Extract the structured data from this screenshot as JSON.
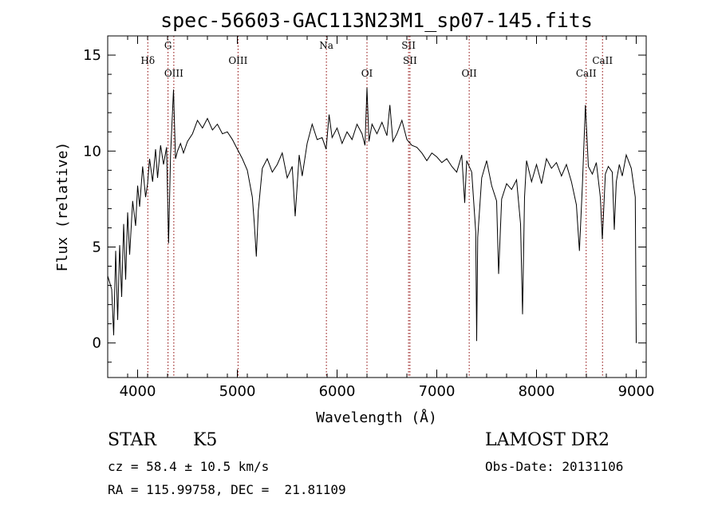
{
  "chart_data": {
    "type": "line",
    "title": "spec-56603-GAC113N23M1_sp07-145.fits",
    "xlabel": "Wavelength (Å)",
    "ylabel": "Flux (relative)",
    "xlim": [
      3700,
      9100
    ],
    "ylim": [
      -1.8,
      16
    ],
    "xticks": [
      4000,
      5000,
      6000,
      7000,
      8000,
      9000
    ],
    "yticks": [
      0,
      5,
      10,
      15
    ],
    "grid": false,
    "series": [
      {
        "points": [
          [
            3700,
            3.5
          ],
          [
            3740,
            2.8
          ],
          [
            3760,
            0.4
          ],
          [
            3780,
            4.8
          ],
          [
            3800,
            1.2
          ],
          [
            3820,
            5.1
          ],
          [
            3840,
            2.4
          ],
          [
            3860,
            6.2
          ],
          [
            3880,
            3.3
          ],
          [
            3900,
            6.8
          ],
          [
            3920,
            4.6
          ],
          [
            3950,
            7.4
          ],
          [
            3980,
            6.1
          ],
          [
            4000,
            8.2
          ],
          [
            4020,
            7.1
          ],
          [
            4050,
            9.2
          ],
          [
            4080,
            7.6
          ],
          [
            4100,
            8.3
          ],
          [
            4120,
            9.6
          ],
          [
            4150,
            8.4
          ],
          [
            4180,
            10.1
          ],
          [
            4200,
            8.6
          ],
          [
            4230,
            10.3
          ],
          [
            4260,
            9.3
          ],
          [
            4290,
            10.2
          ],
          [
            4310,
            5.2
          ],
          [
            4330,
            9.8
          ],
          [
            4360,
            13.2
          ],
          [
            4380,
            9.6
          ],
          [
            4400,
            10.0
          ],
          [
            4430,
            10.4
          ],
          [
            4460,
            9.9
          ],
          [
            4500,
            10.5
          ],
          [
            4550,
            10.9
          ],
          [
            4600,
            11.6
          ],
          [
            4650,
            11.2
          ],
          [
            4700,
            11.7
          ],
          [
            4750,
            11.1
          ],
          [
            4800,
            11.4
          ],
          [
            4850,
            10.9
          ],
          [
            4900,
            11.0
          ],
          [
            4950,
            10.6
          ],
          [
            5000,
            10.1
          ],
          [
            5050,
            9.6
          ],
          [
            5100,
            9.0
          ],
          [
            5150,
            7.6
          ],
          [
            5170,
            6.2
          ],
          [
            5190,
            4.5
          ],
          [
            5210,
            6.9
          ],
          [
            5250,
            9.1
          ],
          [
            5300,
            9.6
          ],
          [
            5350,
            8.9
          ],
          [
            5400,
            9.3
          ],
          [
            5450,
            9.9
          ],
          [
            5500,
            8.6
          ],
          [
            5550,
            9.2
          ],
          [
            5580,
            6.6
          ],
          [
            5620,
            9.8
          ],
          [
            5650,
            8.7
          ],
          [
            5700,
            10.4
          ],
          [
            5750,
            11.4
          ],
          [
            5800,
            10.6
          ],
          [
            5850,
            10.7
          ],
          [
            5890,
            10.1
          ],
          [
            5920,
            11.9
          ],
          [
            5950,
            10.7
          ],
          [
            6000,
            11.2
          ],
          [
            6050,
            10.4
          ],
          [
            6100,
            11.0
          ],
          [
            6150,
            10.6
          ],
          [
            6200,
            11.4
          ],
          [
            6250,
            10.9
          ],
          [
            6280,
            10.3
          ],
          [
            6300,
            13.3
          ],
          [
            6320,
            10.5
          ],
          [
            6350,
            11.4
          ],
          [
            6400,
            10.9
          ],
          [
            6450,
            11.5
          ],
          [
            6500,
            10.8
          ],
          [
            6530,
            12.4
          ],
          [
            6560,
            10.5
          ],
          [
            6600,
            10.9
          ],
          [
            6650,
            11.6
          ],
          [
            6700,
            10.6
          ],
          [
            6750,
            10.3
          ],
          [
            6800,
            10.2
          ],
          [
            6850,
            9.9
          ],
          [
            6900,
            9.5
          ],
          [
            6950,
            9.9
          ],
          [
            7000,
            9.7
          ],
          [
            7050,
            9.4
          ],
          [
            7100,
            9.6
          ],
          [
            7150,
            9.2
          ],
          [
            7200,
            8.9
          ],
          [
            7250,
            9.8
          ],
          [
            7280,
            7.3
          ],
          [
            7300,
            9.5
          ],
          [
            7350,
            8.9
          ],
          [
            7390,
            5.8
          ],
          [
            7400,
            0.1
          ],
          [
            7410,
            5.5
          ],
          [
            7450,
            8.6
          ],
          [
            7500,
            9.5
          ],
          [
            7550,
            8.2
          ],
          [
            7600,
            7.4
          ],
          [
            7620,
            3.6
          ],
          [
            7650,
            7.5
          ],
          [
            7700,
            8.3
          ],
          [
            7750,
            8.0
          ],
          [
            7800,
            8.5
          ],
          [
            7840,
            6.2
          ],
          [
            7860,
            1.5
          ],
          [
            7880,
            7.6
          ],
          [
            7900,
            9.5
          ],
          [
            7950,
            8.4
          ],
          [
            8000,
            9.3
          ],
          [
            8050,
            8.3
          ],
          [
            8100,
            9.6
          ],
          [
            8150,
            9.1
          ],
          [
            8200,
            9.4
          ],
          [
            8250,
            8.7
          ],
          [
            8300,
            9.3
          ],
          [
            8350,
            8.4
          ],
          [
            8400,
            7.2
          ],
          [
            8430,
            4.8
          ],
          [
            8460,
            8.2
          ],
          [
            8490,
            12.4
          ],
          [
            8520,
            9.2
          ],
          [
            8560,
            8.8
          ],
          [
            8600,
            9.4
          ],
          [
            8640,
            7.6
          ],
          [
            8660,
            5.4
          ],
          [
            8690,
            8.8
          ],
          [
            8720,
            9.2
          ],
          [
            8760,
            8.9
          ],
          [
            8780,
            5.9
          ],
          [
            8800,
            8.4
          ],
          [
            8830,
            9.3
          ],
          [
            8860,
            8.7
          ],
          [
            8900,
            9.8
          ],
          [
            8950,
            9.1
          ],
          [
            8990,
            7.6
          ],
          [
            9000,
            0.0
          ]
        ]
      }
    ],
    "line_markers": [
      {
        "label": "Hδ",
        "x": 4102,
        "row": 1
      },
      {
        "label": "G",
        "x": 4305,
        "row": 0
      },
      {
        "label": "OIII",
        "x": 4363,
        "row": 2
      },
      {
        "label": "OIII",
        "x": 5007,
        "row": 1
      },
      {
        "label": "Na",
        "x": 5893,
        "row": 0
      },
      {
        "label": "OI",
        "x": 6300,
        "row": 2
      },
      {
        "label": "SII",
        "x": 6717,
        "row": 0
      },
      {
        "label": "SII",
        "x": 6731,
        "row": 1
      },
      {
        "label": "OII",
        "x": 7325,
        "row": 2
      },
      {
        "label": "CaII",
        "x": 8498,
        "row": 2
      },
      {
        "label": "CaII",
        "x": 8662,
        "row": 1
      }
    ]
  },
  "info": {
    "class": "STAR",
    "subclass": "K5",
    "survey": "LAMOST DR2",
    "cz": "cz = 58.4 ± 10.5 km/s",
    "obs_date": "Obs-Date: 20131106",
    "coords": "RA = 115.99758, DEC =  21.81109"
  }
}
